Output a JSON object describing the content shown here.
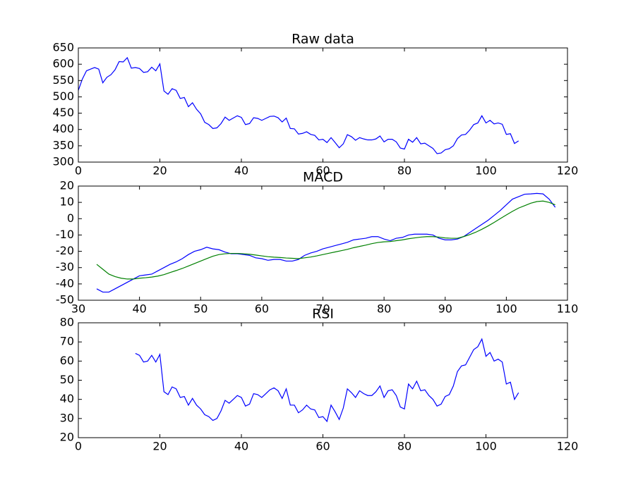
{
  "chart_data": [
    {
      "type": "line",
      "title": "Raw data",
      "x": [
        0,
        1,
        2,
        3,
        4,
        5,
        6,
        7,
        8,
        9,
        10,
        11,
        12,
        13,
        14,
        15,
        16,
        17,
        18,
        19,
        20,
        21,
        22,
        23,
        24,
        25,
        26,
        27,
        28,
        29,
        30,
        31,
        32,
        33,
        34,
        35,
        36,
        37,
        38,
        39,
        40,
        41,
        42,
        43,
        44,
        45,
        46,
        47,
        48,
        49,
        50,
        51,
        52,
        53,
        54,
        55,
        56,
        57,
        58,
        59,
        60,
        61,
        62,
        63,
        64,
        65,
        66,
        67,
        68,
        69,
        70,
        71,
        72,
        73,
        74,
        75,
        76,
        77,
        78,
        79,
        80,
        81,
        82,
        83,
        84,
        85,
        86,
        87,
        88,
        89,
        90,
        91,
        92,
        93,
        94,
        95,
        96,
        97,
        98,
        99,
        100,
        101,
        102,
        103,
        104,
        105,
        106,
        107,
        108
      ],
      "series": [
        {
          "color": "#0000ff",
          "values": [
            520,
            555,
            580,
            585,
            590,
            585,
            543,
            560,
            568,
            583,
            608,
            607,
            620,
            588,
            590,
            587,
            575,
            577,
            591,
            580,
            601,
            518,
            508,
            525,
            520,
            495,
            498,
            470,
            482,
            462,
            448,
            422,
            415,
            403,
            405,
            418,
            438,
            428,
            435,
            442,
            437,
            415,
            418,
            436,
            434,
            428,
            434,
            440,
            441,
            436,
            423,
            435,
            403,
            402,
            386,
            388,
            393,
            385,
            382,
            368,
            370,
            360,
            375,
            360,
            344,
            356,
            384,
            378,
            367,
            375,
            371,
            368,
            368,
            371,
            380,
            362,
            370,
            370,
            362,
            343,
            340,
            370,
            361,
            375,
            356,
            358,
            350,
            342,
            326,
            328,
            338,
            341,
            350,
            372,
            383,
            385,
            398,
            415,
            420,
            442,
            420,
            428,
            417,
            420,
            416,
            385,
            387,
            357,
            365
          ]
        }
      ],
      "xlim": [
        0,
        120
      ],
      "ylim": [
        300,
        650
      ],
      "xticks": [
        0,
        20,
        40,
        60,
        80,
        100,
        120
      ],
      "yticks": [
        300,
        350,
        400,
        450,
        500,
        550,
        600,
        650
      ]
    },
    {
      "type": "line",
      "title": "MACD",
      "x": [
        33,
        34,
        35,
        36,
        37,
        38,
        39,
        40,
        41,
        42,
        43,
        44,
        45,
        46,
        47,
        48,
        49,
        50,
        51,
        52,
        53,
        54,
        55,
        56,
        57,
        58,
        59,
        60,
        61,
        62,
        63,
        64,
        65,
        66,
        67,
        68,
        69,
        70,
        71,
        72,
        73,
        74,
        75,
        76,
        77,
        78,
        79,
        80,
        81,
        82,
        83,
        84,
        85,
        86,
        87,
        88,
        89,
        90,
        91,
        92,
        93,
        94,
        95,
        96,
        97,
        98,
        99,
        100,
        101,
        102,
        103,
        104,
        105,
        106,
        107,
        108
      ],
      "series": [
        {
          "color": "#0000ff",
          "values": [
            -43,
            -45,
            -45,
            -43,
            -41,
            -39,
            -37,
            -35,
            -34.5,
            -34,
            -32,
            -30,
            -28,
            -26.5,
            -24.5,
            -22,
            -20,
            -19,
            -17.5,
            -18.5,
            -19,
            -20.5,
            -21.5,
            -21.5,
            -22,
            -22.5,
            -24,
            -24.5,
            -25.5,
            -25,
            -25,
            -26,
            -26,
            -25,
            -22.5,
            -21,
            -20,
            -18.5,
            -17.5,
            -16.5,
            -15.5,
            -14.5,
            -13,
            -12.5,
            -12,
            -11,
            -11,
            -12.5,
            -13.5,
            -12,
            -11.5,
            -10,
            -9.5,
            -9.5,
            -9.5,
            -10,
            -12,
            -13,
            -13,
            -12.5,
            -11,
            -8.5,
            -6,
            -3.5,
            -1,
            2,
            5,
            8.5,
            12,
            13.5,
            15,
            15.2,
            15.5,
            15.2,
            12,
            7
          ]
        },
        {
          "color": "#008000",
          "values": [
            -28,
            -31,
            -34,
            -35.5,
            -36.5,
            -37,
            -37,
            -36.5,
            -36.2,
            -35.8,
            -35.2,
            -34.3,
            -33,
            -31.8,
            -30.5,
            -29,
            -27.5,
            -26,
            -24.5,
            -23,
            -22,
            -21.5,
            -21.3,
            -21.3,
            -21.5,
            -21.8,
            -22.3,
            -22.8,
            -23.3,
            -23.6,
            -23.8,
            -24.1,
            -24.3,
            -24.5,
            -24,
            -23.5,
            -22.8,
            -22,
            -21.2,
            -20.4,
            -19.6,
            -18.8,
            -17.8,
            -17,
            -16.2,
            -15.3,
            -14.6,
            -14.2,
            -14,
            -13.5,
            -13,
            -12.3,
            -11.8,
            -11.3,
            -11,
            -11,
            -11.3,
            -11.8,
            -12,
            -12,
            -11,
            -9.8,
            -8.3,
            -6.5,
            -4.5,
            -2.3,
            0,
            2.3,
            4.5,
            6.5,
            8,
            9.5,
            10.5,
            10.8,
            10,
            8.5
          ]
        }
      ],
      "xlim": [
        30,
        110
      ],
      "ylim": [
        -50,
        20
      ],
      "xticks": [
        30,
        40,
        50,
        60,
        70,
        80,
        90,
        100,
        110
      ],
      "yticks": [
        -50,
        -40,
        -30,
        -20,
        -10,
        0,
        10,
        20
      ]
    },
    {
      "type": "line",
      "title": "RSI",
      "x": [
        14,
        15,
        16,
        17,
        18,
        19,
        20,
        21,
        22,
        23,
        24,
        25,
        26,
        27,
        28,
        29,
        30,
        31,
        32,
        33,
        34,
        35,
        36,
        37,
        38,
        39,
        40,
        41,
        42,
        43,
        44,
        45,
        46,
        47,
        48,
        49,
        50,
        51,
        52,
        53,
        54,
        55,
        56,
        57,
        58,
        59,
        60,
        61,
        62,
        63,
        64,
        65,
        66,
        67,
        68,
        69,
        70,
        71,
        72,
        73,
        74,
        75,
        76,
        77,
        78,
        79,
        80,
        81,
        82,
        83,
        84,
        85,
        86,
        87,
        88,
        89,
        90,
        91,
        92,
        93,
        94,
        95,
        96,
        97,
        98,
        99,
        100,
        101,
        102,
        103,
        104,
        105,
        106,
        107,
        108
      ],
      "series": [
        {
          "color": "#0000ff",
          "values": [
            64,
            63,
            59.5,
            60,
            63,
            59.5,
            63.5,
            44,
            42.5,
            46.5,
            45.5,
            41,
            41.5,
            37,
            40.5,
            37,
            35,
            32,
            31,
            29,
            30,
            34,
            39.5,
            38,
            40,
            42,
            41,
            36.5,
            37.5,
            43,
            42.5,
            41,
            43,
            45,
            46,
            44.5,
            40.5,
            45.5,
            37,
            37,
            33,
            34.5,
            37,
            35,
            34.5,
            30.5,
            31,
            28.5,
            37,
            33.5,
            29.5,
            35.5,
            45.5,
            43.5,
            41,
            44.5,
            43,
            42,
            42,
            44,
            47,
            41,
            44.5,
            45,
            42,
            36,
            35,
            48,
            45.5,
            49.5,
            44.5,
            45,
            42,
            40,
            36.5,
            37.5,
            41.5,
            42.5,
            47,
            54.5,
            57.5,
            58,
            62,
            66,
            67.5,
            71.5,
            62.5,
            64.5,
            60,
            61,
            59.5,
            48,
            49,
            40,
            43.5
          ]
        }
      ],
      "xlim": [
        0,
        120
      ],
      "ylim": [
        20,
        80
      ],
      "xticks": [
        0,
        20,
        40,
        60,
        80,
        100,
        120
      ],
      "yticks": [
        20,
        30,
        40,
        50,
        60,
        70,
        80
      ]
    }
  ]
}
